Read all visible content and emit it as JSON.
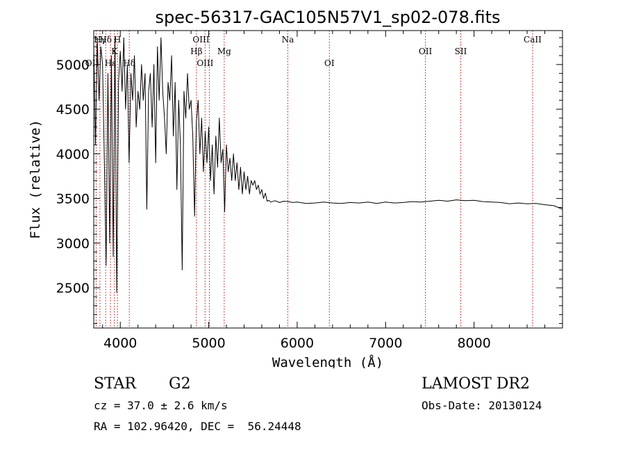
{
  "chart_data": {
    "type": "line",
    "title": "spec-56317-GAC105N57V1_sp02-078.fits",
    "xlabel": "Wavelength (Å)",
    "ylabel": "Flux (relative)",
    "xlim": [
      3700,
      9000
    ],
    "ylim": [
      2050,
      5380
    ],
    "xticks": [
      4000,
      5000,
      6000,
      7000,
      8000
    ],
    "yticks": [
      2500,
      3000,
      3500,
      4000,
      4500,
      5000
    ],
    "grid": false,
    "series": [
      {
        "x": [
          3700,
          3720,
          3740,
          3760,
          3780,
          3800,
          3820,
          3840,
          3860,
          3880,
          3900,
          3920,
          3940,
          3960,
          3980,
          4000,
          4020,
          4040,
          4060,
          4080,
          4100,
          4120,
          4140,
          4160,
          4180,
          4200,
          4220,
          4240,
          4260,
          4280,
          4300,
          4320,
          4340,
          4360,
          4380,
          4400,
          4420,
          4440,
          4460,
          4480,
          4500,
          4520,
          4540,
          4560,
          4580,
          4600,
          4620,
          4640,
          4660,
          4680,
          4700,
          4720,
          4740,
          4760,
          4780,
          4800,
          4820,
          4840,
          4860,
          4880,
          4900,
          4920,
          4940,
          4960,
          4980,
          5000,
          5020,
          5040,
          5060,
          5080,
          5100,
          5120,
          5140,
          5160,
          5180,
          5200,
          5220,
          5240,
          5260,
          5280,
          5300,
          5320,
          5340,
          5360,
          5380,
          5400,
          5420,
          5440,
          5460,
          5480,
          5500,
          5520,
          5540,
          5560,
          5580,
          5600,
          5620,
          5640,
          5660,
          5680,
          5700,
          5750,
          5800,
          5850,
          5900,
          5950,
          6000,
          6100,
          6200,
          6300,
          6400,
          6500,
          6600,
          6700,
          6800,
          6900,
          7000,
          7100,
          7200,
          7300,
          7400,
          7500,
          7600,
          7700,
          7800,
          7900,
          8000,
          8100,
          8200,
          8300,
          8400,
          8500,
          8600,
          8700,
          8800,
          8900,
          9000
        ],
        "y": [
          5200,
          4100,
          5300,
          4600,
          5200,
          5000,
          3900,
          2750,
          4900,
          3000,
          5100,
          2850,
          5300,
          2450,
          4800,
          5150,
          4700,
          5300,
          4500,
          5000,
          3900,
          4900,
          4600,
          5100,
          4300,
          4700,
          4500,
          5000,
          4600,
          4900,
          3380,
          4700,
          4900,
          4300,
          5000,
          3900,
          5200,
          4600,
          5300,
          4700,
          4400,
          4000,
          4800,
          4600,
          5100,
          4200,
          4800,
          3600,
          4600,
          4100,
          2700,
          4700,
          4400,
          4900,
          4500,
          4600,
          4200,
          3300,
          4350,
          4600,
          4000,
          4400,
          3800,
          4250,
          3900,
          4300,
          3700,
          4100,
          3550,
          4200,
          3850,
          4400,
          3900,
          4050,
          3350,
          4100,
          3800,
          3950,
          3700,
          4000,
          3700,
          3900,
          3600,
          3850,
          3550,
          3800,
          3600,
          3750,
          3550,
          3700,
          3650,
          3700,
          3600,
          3650,
          3550,
          3600,
          3500,
          3560,
          3470,
          3480,
          3460,
          3475,
          3455,
          3470,
          3465,
          3455,
          3460,
          3445,
          3450,
          3460,
          3450,
          3445,
          3455,
          3450,
          3460,
          3445,
          3460,
          3450,
          3455,
          3465,
          3460,
          3470,
          3480,
          3470,
          3485,
          3475,
          3480,
          3465,
          3460,
          3455,
          3440,
          3450,
          3440,
          3445,
          3430,
          3420,
          3380
        ]
      }
    ],
    "lines": [
      {
        "label": "OII",
        "x": 3727,
        "row": "lower",
        "dx": -6
      },
      {
        "label": "Hγ",
        "x": 3770,
        "row": "upper",
        "dx": 0
      },
      {
        "label": "Hδ",
        "x": 3835,
        "row": "upper",
        "dx": 0
      },
      {
        "label": "Hε",
        "x": 3889,
        "row": "lower",
        "dx": 0
      },
      {
        "label": "K",
        "x": 3933,
        "row": "mid",
        "dx": 0
      },
      {
        "label": "H",
        "x": 3968,
        "row": "upper",
        "dx": 0
      },
      {
        "label": "Hδ",
        "x": 4102,
        "row": "lower",
        "dx": 0
      },
      {
        "label": "Hβ",
        "x": 4861,
        "row": "mid",
        "dx": 0
      },
      {
        "label": "OIII",
        "x": 4959,
        "row": "lower",
        "dx": 0
      },
      {
        "label": "OIII",
        "x": 5007,
        "row": "upper",
        "dx": -12
      },
      {
        "label": "Mg",
        "x": 5175,
        "row": "mid",
        "dx": 0
      },
      {
        "label": "Na",
        "x": 5894,
        "row": "upper",
        "dx": 0
      },
      {
        "label": "OI",
        "x": 6364,
        "row": "lower",
        "dx": 0
      },
      {
        "label": "OII",
        "x": 7450,
        "row": "mid",
        "dx": 0
      },
      {
        "label": "SII",
        "x": 7850,
        "row": "mid",
        "dx": 0
      },
      {
        "label": "CaII",
        "x": 8662,
        "row": "upper",
        "dx": 0
      }
    ]
  },
  "info": {
    "class": "STAR",
    "subclass": "G2",
    "survey": "LAMOST DR2",
    "cz": "cz = 37.0 ± 2.6 km/s",
    "obs_date": "Obs-Date: 20130124",
    "coords": "RA = 102.96420, DEC =  56.24448"
  },
  "colors": {
    "spectrum": "#000000",
    "line_marker": "#cc0000",
    "axis": "#000000"
  }
}
